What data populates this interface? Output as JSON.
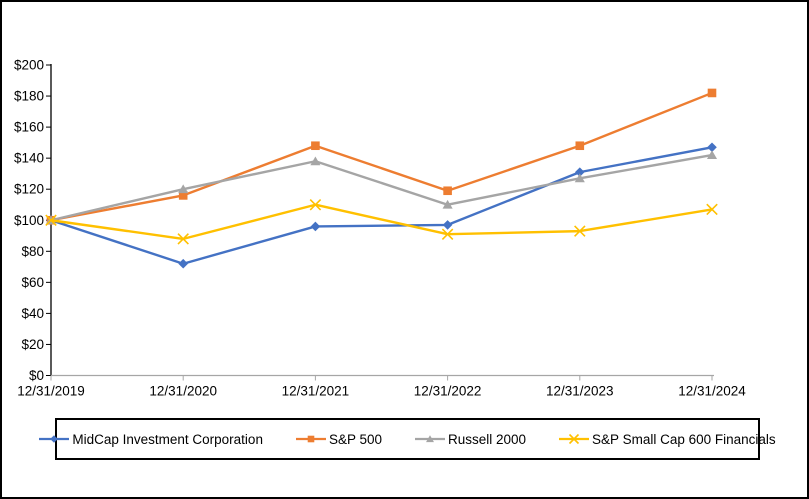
{
  "chart_data": {
    "type": "line",
    "title": "",
    "xlabel": "",
    "ylabel": "",
    "grid": false,
    "legend_position": "bottom-boxed",
    "x_categories": [
      "12/31/2019",
      "12/31/2020",
      "12/31/2021",
      "12/31/2022",
      "12/31/2023",
      "12/31/2024"
    ],
    "y_axis": {
      "min": 0,
      "max": 200,
      "step": 20,
      "tick_labels": [
        "$0",
        "$20",
        "$40",
        "$60",
        "$80",
        "$100",
        "$120",
        "$140",
        "$160",
        "$180",
        "$200"
      ]
    },
    "series": [
      {
        "name": "MidCap Investment Corporation",
        "color": "#4472C4",
        "marker": "diamond",
        "values": [
          100,
          72,
          96,
          97,
          131,
          147
        ]
      },
      {
        "name": "S&P 500",
        "color": "#ED7D31",
        "marker": "square",
        "values": [
          100,
          116,
          148,
          119,
          148,
          182
        ]
      },
      {
        "name": "Russell 2000",
        "color": "#A5A5A5",
        "marker": "triangle",
        "values": [
          100,
          120,
          138,
          110,
          127,
          142
        ]
      },
      {
        "name": "S&P Small Cap 600 Financials",
        "color": "#FFC000",
        "marker": "x",
        "values": [
          100,
          88,
          110,
          91,
          93,
          107
        ]
      }
    ],
    "axis_colors": {
      "y_axis": "#000000",
      "x_axis": "#A6A6A6",
      "text": "#000000"
    }
  }
}
